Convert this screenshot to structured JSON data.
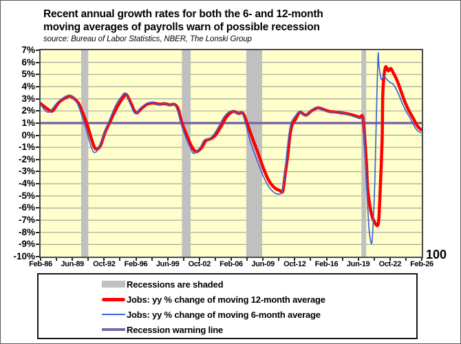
{
  "title": {
    "line1": "Recent annual growth rates for both the 6- and 12-month",
    "line2": "moving averages of payrolls warn of possible recession",
    "source": "source: Bureau of Labor Statistics, NBER, The Lonski Group"
  },
  "legend": {
    "items": [
      {
        "swatch": "recession-band",
        "label": "Recessions are shaded"
      },
      {
        "swatch": "line-12-month",
        "label": "Jobs: yy % change of moving 12-month average"
      },
      {
        "swatch": "line-6-month",
        "label": "Jobs: yy % change of moving 6-month average"
      },
      {
        "swatch": "warning-line",
        "label": "Recession warning line"
      }
    ]
  },
  "chart_data": {
    "type": "line",
    "plot_bg": "#FFFFCC",
    "gridline_color": "#A6A69C",
    "grid": "horizontal-only",
    "x_axis": {
      "start": "1986-02",
      "end": "2026-02",
      "months_total": 480,
      "minor_tick_every_months": 20,
      "tick_labels": [
        "Feb-86",
        "Jun-89",
        "Oct-92",
        "Feb-96",
        "Jun-99",
        "Oct-02",
        "Feb-06",
        "Jun-09",
        "Oct-12",
        "Feb-16",
        "Jun-19",
        "Oct-22",
        "Feb-26"
      ]
    },
    "y_axis": {
      "min": -10,
      "max": 7,
      "step": 1,
      "unit": "%",
      "labels": [
        "7%",
        "6%",
        "5%",
        "4%",
        "3%",
        "2%",
        "1%",
        "0%",
        "-1%",
        "-2%",
        "-3%",
        "-4%",
        "-5%",
        "-6%",
        "-7%",
        "-8%",
        "-9%",
        "-10%"
      ]
    },
    "right_axis_label": "100",
    "recession_bands": {
      "label": "Recessions are shaded",
      "color": "#C0C0C0",
      "ranges": [
        {
          "start": "1990-05",
          "end": "1991-02"
        },
        {
          "start": "2000-12",
          "end": "2001-11"
        },
        {
          "start": "2007-09",
          "end": "2009-05"
        },
        {
          "start": "2019-10",
          "end": "2020-04"
        }
      ]
    },
    "warning_line": {
      "label": "Recession warning line",
      "value": 1,
      "color": "#7B68A6",
      "width": 3.5
    },
    "series": [
      {
        "name": "Jobs: yy % change of moving 12-month average",
        "color": "#FF0000",
        "width": 4.5,
        "points": [
          [
            "1986-02",
            2.6
          ],
          [
            "1986-11",
            2.15
          ],
          [
            "1987-05",
            2.0
          ],
          [
            "1988-01",
            2.7
          ],
          [
            "1988-10",
            3.1
          ],
          [
            "1989-04",
            3.2
          ],
          [
            "1990-01",
            2.7
          ],
          [
            "1990-06",
            2.0
          ],
          [
            "1990-12",
            1.0
          ],
          [
            "1991-06",
            -0.3
          ],
          [
            "1991-11",
            -1.1
          ],
          [
            "1992-05",
            -0.9
          ],
          [
            "1992-11",
            0.2
          ],
          [
            "1993-06",
            1.2
          ],
          [
            "1994-03",
            2.4
          ],
          [
            "1994-10",
            3.1
          ],
          [
            "1995-02",
            3.35
          ],
          [
            "1995-08",
            2.6
          ],
          [
            "1996-02",
            1.85
          ],
          [
            "1996-09",
            2.2
          ],
          [
            "1997-04",
            2.55
          ],
          [
            "1997-12",
            2.65
          ],
          [
            "1998-07",
            2.55
          ],
          [
            "1999-02",
            2.6
          ],
          [
            "1999-09",
            2.5
          ],
          [
            "2000-02",
            2.55
          ],
          [
            "2000-07",
            2.2
          ],
          [
            "2000-12",
            1.0
          ],
          [
            "2001-06",
            0.0
          ],
          [
            "2001-12",
            -0.9
          ],
          [
            "2002-06",
            -1.35
          ],
          [
            "2003-01",
            -1.0
          ],
          [
            "2003-06",
            -0.45
          ],
          [
            "2003-12",
            -0.3
          ],
          [
            "2004-06",
            0.0
          ],
          [
            "2005-01",
            0.7
          ],
          [
            "2005-08",
            1.5
          ],
          [
            "2006-04",
            1.95
          ],
          [
            "2006-11",
            1.8
          ],
          [
            "2007-05",
            1.8
          ],
          [
            "2007-10",
            1.0
          ],
          [
            "2008-05",
            -0.3
          ],
          [
            "2008-12",
            -1.5
          ],
          [
            "2009-07",
            -2.8
          ],
          [
            "2010-02",
            -3.8
          ],
          [
            "2010-09",
            -4.35
          ],
          [
            "2011-03",
            -4.55
          ],
          [
            "2011-07",
            -4.6
          ],
          [
            "2011-10",
            -3.2
          ],
          [
            "2012-01",
            -1.8
          ],
          [
            "2012-04",
            0.0
          ],
          [
            "2012-07",
            0.9
          ],
          [
            "2012-11",
            1.3
          ],
          [
            "2013-02",
            1.7
          ],
          [
            "2013-05",
            1.9
          ],
          [
            "2013-12",
            1.65
          ],
          [
            "2014-07",
            2.0
          ],
          [
            "2015-03",
            2.25
          ],
          [
            "2015-11",
            2.1
          ],
          [
            "2016-06",
            1.95
          ],
          [
            "2017-04",
            1.9
          ],
          [
            "2018-05",
            1.75
          ],
          [
            "2019-02",
            1.6
          ],
          [
            "2019-08",
            1.45
          ],
          [
            "2019-12",
            1.35
          ],
          [
            "2020-04",
            -2.0
          ],
          [
            "2020-06",
            -4.5
          ],
          [
            "2020-10",
            -6.3
          ],
          [
            "2021-02",
            -7.1
          ],
          [
            "2021-07",
            -7.35
          ],
          [
            "2021-09",
            -5.5
          ],
          [
            "2021-12",
            -0.5
          ],
          [
            "2022-01",
            3.5
          ],
          [
            "2022-04",
            5.55
          ],
          [
            "2022-08",
            5.3
          ],
          [
            "2022-11",
            5.5
          ],
          [
            "2023-02",
            5.15
          ],
          [
            "2023-07",
            4.5
          ],
          [
            "2023-12",
            3.6
          ],
          [
            "2024-05",
            2.7
          ],
          [
            "2024-10",
            2.0
          ],
          [
            "2025-04",
            1.3
          ],
          [
            "2025-08",
            0.8
          ],
          [
            "2026-01",
            0.45
          ]
        ]
      },
      {
        "name": "Jobs: yy % change of moving 6-month average",
        "color": "#3C64D2",
        "width": 1.7,
        "points": [
          [
            "1986-02",
            2.5
          ],
          [
            "1986-12",
            1.9
          ],
          [
            "1987-12",
            2.75
          ],
          [
            "1989-02",
            3.3
          ],
          [
            "1989-11",
            2.75
          ],
          [
            "1990-04",
            2.0
          ],
          [
            "1990-11",
            0.6
          ],
          [
            "1991-04",
            -0.6
          ],
          [
            "1991-09",
            -1.4
          ],
          [
            "1992-03",
            -1.1
          ],
          [
            "1992-10",
            0.1
          ],
          [
            "1993-05",
            1.3
          ],
          [
            "1994-01",
            2.5
          ],
          [
            "1994-08",
            3.2
          ],
          [
            "1995-01",
            3.45
          ],
          [
            "1995-07",
            2.55
          ],
          [
            "1996-01",
            1.8
          ],
          [
            "1996-08",
            2.25
          ],
          [
            "1997-03",
            2.6
          ],
          [
            "1997-11",
            2.7
          ],
          [
            "1998-06",
            2.5
          ],
          [
            "1999-01",
            2.65
          ],
          [
            "1999-08",
            2.45
          ],
          [
            "2000-01",
            2.6
          ],
          [
            "2000-06",
            2.1
          ],
          [
            "2000-11",
            0.9
          ],
          [
            "2001-05",
            -0.2
          ],
          [
            "2001-11",
            -1.1
          ],
          [
            "2002-03",
            -1.5
          ],
          [
            "2002-11",
            -1.0
          ],
          [
            "2003-04",
            -0.4
          ],
          [
            "2003-10",
            -0.3
          ],
          [
            "2004-04",
            0.05
          ],
          [
            "2004-11",
            0.8
          ],
          [
            "2005-06",
            1.6
          ],
          [
            "2006-02",
            2.0
          ],
          [
            "2006-09",
            1.8
          ],
          [
            "2007-03",
            1.9
          ],
          [
            "2007-08",
            1.0
          ],
          [
            "2008-02",
            -0.5
          ],
          [
            "2008-09",
            -1.8
          ],
          [
            "2009-04",
            -3.0
          ],
          [
            "2009-11",
            -4.0
          ],
          [
            "2010-06",
            -4.6
          ],
          [
            "2011-01",
            -4.85
          ],
          [
            "2011-06",
            -4.6
          ],
          [
            "2011-10",
            -3.0
          ],
          [
            "2011-12",
            -1.5
          ],
          [
            "2012-03",
            0.2
          ],
          [
            "2012-06",
            1.1
          ],
          [
            "2012-11",
            1.6
          ],
          [
            "2013-04",
            1.95
          ],
          [
            "2013-11",
            1.6
          ],
          [
            "2014-06",
            1.95
          ],
          [
            "2015-01",
            2.3
          ],
          [
            "2015-11",
            2.05
          ],
          [
            "2016-06",
            1.9
          ],
          [
            "2017-04",
            1.95
          ],
          [
            "2018-04",
            1.7
          ],
          [
            "2018-12",
            1.55
          ],
          [
            "2019-06",
            1.4
          ],
          [
            "2019-12",
            1.2
          ],
          [
            "2020-02",
            -1.0
          ],
          [
            "2020-06",
            -6.0
          ],
          [
            "2020-08",
            -8.0
          ],
          [
            "2020-11",
            -8.9
          ],
          [
            "2021-01",
            -7.0
          ],
          [
            "2021-03",
            -3.5
          ],
          [
            "2021-05",
            2.0
          ],
          [
            "2021-07",
            6.6
          ],
          [
            "2021-08",
            5.8
          ],
          [
            "2021-11",
            4.6
          ],
          [
            "2022-02",
            4.85
          ],
          [
            "2022-06",
            4.6
          ],
          [
            "2022-10",
            4.35
          ],
          [
            "2023-02",
            4.2
          ],
          [
            "2023-08",
            3.5
          ],
          [
            "2024-01",
            2.7
          ],
          [
            "2024-06",
            2.0
          ],
          [
            "2024-11",
            1.45
          ],
          [
            "2025-05",
            0.7
          ],
          [
            "2025-09",
            0.35
          ],
          [
            "2026-01",
            0.2
          ]
        ]
      }
    ]
  }
}
